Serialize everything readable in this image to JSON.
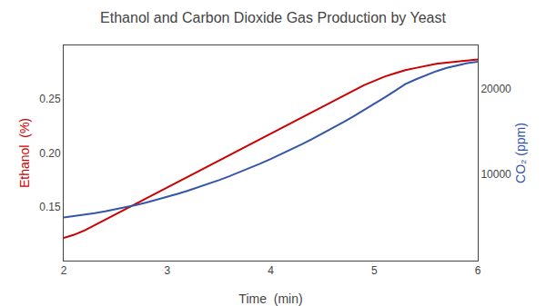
{
  "chart_data": {
    "type": "line",
    "title": "Ethanol and Carbon Dioxide Gas Production by Yeast",
    "xlabel": "Time  (min)",
    "ylabel": "Ethanol  (%)",
    "y2label": "CO₂ (ppm)",
    "x": [
      2.0,
      2.1,
      2.2,
      2.3,
      2.4,
      2.5,
      2.6,
      2.7,
      2.8,
      2.9,
      3.0,
      3.1,
      3.2,
      3.3,
      3.4,
      3.5,
      3.6,
      3.7,
      3.8,
      3.9,
      4.0,
      4.1,
      4.2,
      4.3,
      4.4,
      4.5,
      4.6,
      4.7,
      4.8,
      4.9,
      5.0,
      5.1,
      5.2,
      5.3,
      5.4,
      5.5,
      5.6,
      5.7,
      5.8,
      5.9,
      6.0
    ],
    "series": [
      {
        "color": "#cc0000",
        "axis": "y",
        "values": [
          0.121,
          0.124,
          0.128,
          0.133,
          0.138,
          0.143,
          0.148,
          0.153,
          0.158,
          0.163,
          0.168,
          0.173,
          0.178,
          0.183,
          0.188,
          0.193,
          0.198,
          0.203,
          0.208,
          0.213,
          0.218,
          0.223,
          0.228,
          0.233,
          0.238,
          0.243,
          0.248,
          0.253,
          0.258,
          0.263,
          0.267,
          0.271,
          0.274,
          0.277,
          0.279,
          0.281,
          0.283,
          0.284,
          0.285,
          0.286,
          0.287
        ]
      },
      {
        "color": "#3355aa",
        "axis": "y2",
        "values": [
          5000,
          5150,
          5320,
          5510,
          5720,
          5950,
          6200,
          6470,
          6760,
          7070,
          7400,
          7750,
          8120,
          8510,
          8920,
          9350,
          9800,
          10270,
          10760,
          11270,
          11800,
          12350,
          12920,
          13510,
          14120,
          14750,
          15400,
          16070,
          16760,
          17470,
          18200,
          18950,
          19720,
          20510,
          21040,
          21560,
          22000,
          22380,
          22690,
          22940,
          23100
        ]
      }
    ],
    "xlim": [
      2,
      6
    ],
    "xticks": [
      2,
      3,
      4,
      5,
      6
    ],
    "ylim": [
      0.1,
      0.3
    ],
    "yticks": [
      0.15,
      {
        "value": 0.2,
        "label": "0.20"
      },
      0.25
    ],
    "y2lim": [
      0,
      25000
    ],
    "y2ticks": [
      10000,
      20000
    ],
    "grid": false
  }
}
